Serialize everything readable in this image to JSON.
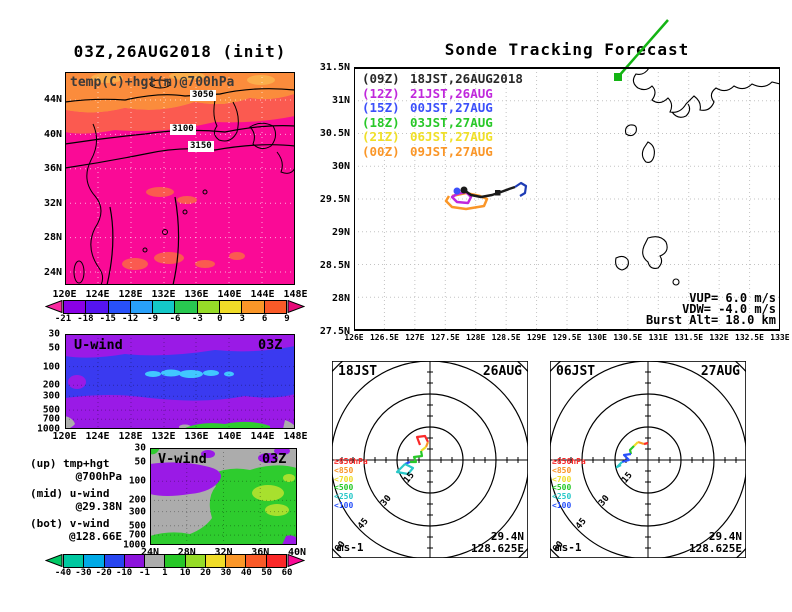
{
  "palette": {
    "magenta": "#FA0A96",
    "orange": "#FB8C3C",
    "salmon": "#FB5A50",
    "royal_blue": "#3A3AF0",
    "purple": "#9A1AE6",
    "cyan": "#41C8FF",
    "green": "#2ECC2E",
    "gray": "#ACACAC",
    "yellow_green": "#A8E02E",
    "track_green": "#14B414"
  },
  "temp_map": {
    "title": "03Z,26AUG2018 (init)",
    "field_label": "temp(C)+hgt(m)@700hPa",
    "contour_labels": [
      "3050",
      "3100",
      "3150"
    ],
    "lat_ticks": [
      "44N",
      "40N",
      "36N",
      "32N",
      "28N",
      "24N"
    ],
    "lon_ticks": [
      "120E",
      "124E",
      "128E",
      "132E",
      "136E",
      "140E",
      "144E",
      "148E"
    ],
    "colorbar": {
      "labels": [
        "-21",
        "-18",
        "-15",
        "-12",
        "-9",
        "-6",
        "-3",
        "0",
        "3",
        "6",
        "9"
      ],
      "segments": [
        "#8A00E6",
        "#5514F0",
        "#2850FA",
        "#28A0FA",
        "#14C8C8",
        "#28C850",
        "#96DC28",
        "#F0DC28",
        "#FA9628",
        "#FA5A28"
      ],
      "arrow_left": "#FA28A0",
      "arrow_right": "#E60A78"
    }
  },
  "sonde": {
    "title": "Sonde Tracking Forecast",
    "legend": [
      {
        "utc": "(09Z)",
        "jst": "18JST,26AUG2018",
        "color": "#282828"
      },
      {
        "utc": "(12Z)",
        "jst": "21JST,26AUG",
        "color": "#C028DC"
      },
      {
        "utc": "(15Z)",
        "jst": "00JST,27AUG",
        "color": "#3C50FA"
      },
      {
        "utc": "(18Z)",
        "jst": "03JST,27AUG",
        "color": "#28C828"
      },
      {
        "utc": "(21Z)",
        "jst": "06JST,27AUG",
        "color": "#F0E028"
      },
      {
        "utc": "(00Z)",
        "jst": "09JST,27AUG",
        "color": "#FA9628"
      }
    ],
    "lat_ticks": [
      "31.5N",
      "31N",
      "30.5N",
      "30N",
      "29.5N",
      "29N",
      "28.5N",
      "28N",
      "27.5N"
    ],
    "lon_ticks": [
      "126E",
      "126.5E",
      "127E",
      "127.5E",
      "128E",
      "128.5E",
      "129E",
      "129.5E",
      "130E",
      "130.5E",
      "131E",
      "131.5E",
      "132E",
      "132.5E",
      "133E"
    ],
    "vup": "VUP=  6.0 m/s",
    "vdw": "VDW= -4.0 m/s",
    "burst": "Burst Alt= 18.0 km"
  },
  "uwind": {
    "label": "U-wind",
    "time": "03Z",
    "pressure_ticks": [
      "30",
      "50",
      "100",
      "200",
      "300",
      "500",
      "700",
      "1000"
    ],
    "lon_ticks": [
      "120E",
      "124E",
      "128E",
      "132E",
      "136E",
      "140E",
      "144E",
      "148E"
    ]
  },
  "vwind": {
    "label": "V-wind",
    "time": "03Z",
    "pressure_ticks": [
      "30",
      "50",
      "100",
      "200",
      "300",
      "500",
      "700",
      "1000"
    ],
    "lat_ticks": [
      "24N",
      "28N",
      "32N",
      "36N",
      "40N"
    ],
    "colorbar": {
      "labels": [
        "-40",
        "-30",
        "-20",
        "-10",
        "-1",
        "1",
        "10",
        "20",
        "30",
        "40",
        "50",
        "60"
      ],
      "segments": [
        "#00C8A0",
        "#00AAE6",
        "#2846F0",
        "#8C14DC",
        "#ACACAC",
        "#28C828",
        "#96DC28",
        "#F0DC28",
        "#FA9628",
        "#FA5A28",
        "#FA2828"
      ],
      "arrow_left": "#00C864",
      "arrow_right": "#FA0A96"
    }
  },
  "panel_key": {
    "rows": [
      {
        "pos": "(up)",
        "field": "tmp+hgt",
        "at": "@700hPa"
      },
      {
        "pos": "(mid)",
        "field": "u-wind",
        "at": "@29.38N"
      },
      {
        "pos": "(bot)",
        "field": "v-wind",
        "at": "@128.66E"
      }
    ]
  },
  "hodographs": {
    "unit": "ms-1",
    "ring_labels": [
      "15",
      "30",
      "45",
      "60"
    ],
    "legend": [
      {
        "label": "≥850hPa",
        "color": "#FA2828"
      },
      {
        "label": "<850",
        "color": "#FA9628"
      },
      {
        "label": "<700",
        "color": "#F0DC28"
      },
      {
        "label": "<500",
        "color": "#28C828"
      },
      {
        "label": "<250",
        "color": "#28C8C8"
      },
      {
        "label": "<100",
        "color": "#2850FA"
      }
    ],
    "plots": [
      {
        "time": "18JST",
        "date": "26AUG",
        "lat": "29.4N",
        "lon": "128.625E"
      },
      {
        "time": "06JST",
        "date": "27AUG",
        "lat": "29.4N",
        "lon": "128.625E"
      }
    ]
  },
  "chart_data": [
    {
      "type": "heatmap",
      "title": "03Z,26AUG2018 (init)",
      "subtitle": "temp(C)+hgt(m)@700hPa",
      "x_ticks": [
        "120E",
        "124E",
        "128E",
        "132E",
        "136E",
        "140E",
        "144E",
        "148E"
      ],
      "y_ticks": [
        "24N",
        "28N",
        "32N",
        "36N",
        "40N",
        "44N"
      ],
      "contour_levels_m": [
        3050,
        3100,
        3150
      ],
      "color_scale_C": [
        -21,
        -18,
        -15,
        -12,
        -9,
        -6,
        -3,
        0,
        3,
        6,
        9
      ],
      "legend_position": "bottom"
    },
    {
      "type": "scatter",
      "title": "Sonde Tracking Forecast",
      "x_range": [
        "126E",
        "133E"
      ],
      "y_range": [
        "27.5N",
        "31.5N"
      ],
      "grid": true,
      "series": [
        {
          "name": "(09Z) 18JST,26AUG2018"
        },
        {
          "name": "(12Z) 21JST,26AUG"
        },
        {
          "name": "(15Z) 00JST,27AUG"
        },
        {
          "name": "(18Z) 03JST,27AUG"
        },
        {
          "name": "(21Z) 06JST,27AUG"
        },
        {
          "name": "(00Z) 09JST,27AUG"
        }
      ],
      "track_cluster_near": {
        "lat": "29.5N",
        "lon": "128.0-129.0E"
      },
      "annotations": [
        "VUP=  6.0 m/s",
        "VDW= -4.0 m/s",
        "Burst Alt= 18.0 km"
      ]
    },
    {
      "type": "heatmap",
      "title": "U-wind 03Z",
      "x_range": [
        "120E",
        "148E"
      ],
      "y_range_hPa": [
        30,
        1000
      ],
      "y_scale": "log"
    },
    {
      "type": "heatmap",
      "title": "V-wind 03Z",
      "x_range": [
        "24N",
        "40N"
      ],
      "y_range_hPa": [
        30,
        1000
      ],
      "y_scale": "log",
      "color_scale": [
        -40,
        -30,
        -20,
        -10,
        -1,
        1,
        10,
        20,
        30,
        40,
        50,
        60
      ]
    },
    {
      "type": "hodograph",
      "title": "18JST 26AUG",
      "rings_ms": [
        15,
        30,
        45,
        60
      ],
      "unit": "ms-1",
      "levels": [
        "≥850hPa",
        "<850",
        "<700",
        "<500",
        "<250",
        "<100"
      ],
      "location": {
        "lat": "29.4N",
        "lon": "128.625E"
      }
    },
    {
      "type": "hodograph",
      "title": "06JST 27AUG",
      "rings_ms": [
        15,
        30,
        45,
        60
      ],
      "unit": "ms-1",
      "levels": [
        "≥850hPa",
        "<850",
        "<700",
        "<500",
        "<250",
        "<100"
      ],
      "location": {
        "lat": "29.4N",
        "lon": "128.625E"
      }
    }
  ]
}
